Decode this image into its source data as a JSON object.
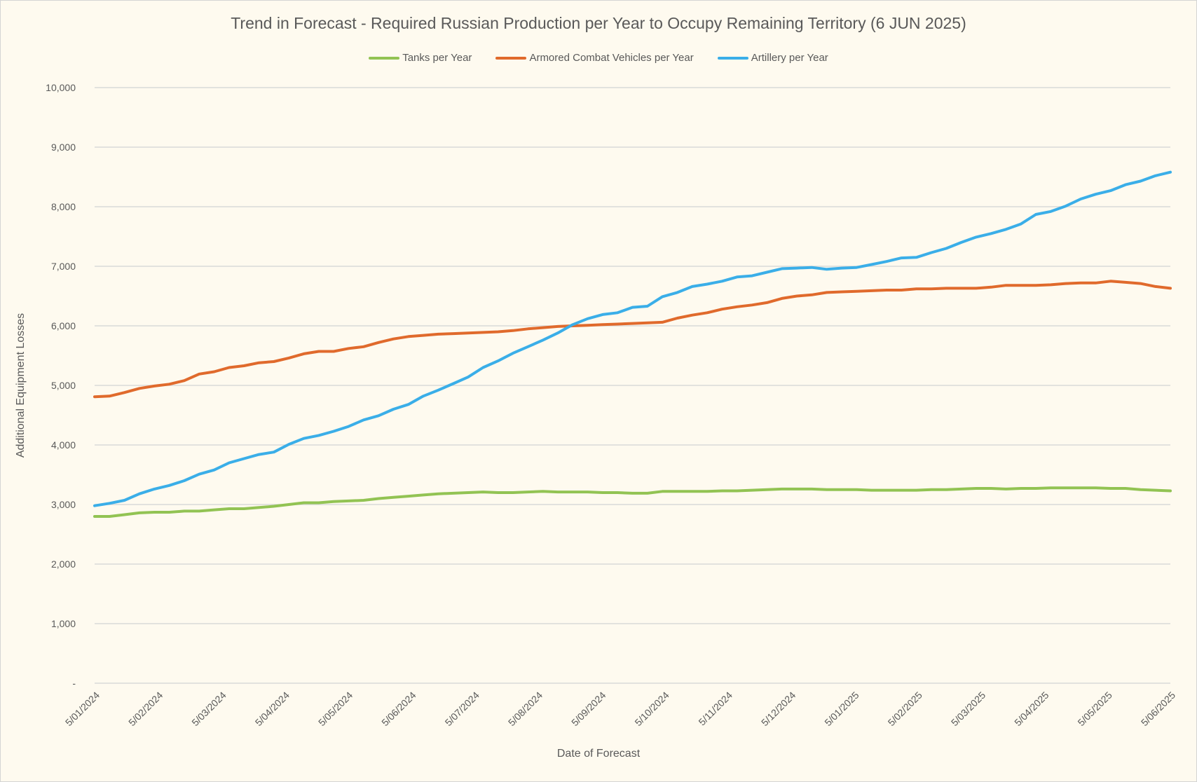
{
  "chart_data": {
    "type": "line",
    "title": "Trend in Forecast - Required Russian Production per Year to Occupy Remaining Territory (6 JUN 2025)",
    "xlabel": "Date of Forecast",
    "ylabel": "Additional Equipment Losses",
    "ylim": [
      0,
      10000
    ],
    "yticks": [
      0,
      1000,
      2000,
      3000,
      4000,
      5000,
      6000,
      7000,
      8000,
      9000,
      10000
    ],
    "ytick_labels": [
      "-",
      "1,000",
      "2,000",
      "3,000",
      "4,000",
      "5,000",
      "6,000",
      "7,000",
      "8,000",
      "9,000",
      "10,000"
    ],
    "xtick_labels": [
      "5/01/2024",
      "5/02/2024",
      "5/03/2024",
      "5/04/2024",
      "5/05/2024",
      "5/06/2024",
      "5/07/2024",
      "5/08/2024",
      "5/09/2024",
      "5/10/2024",
      "5/11/2024",
      "5/12/2024",
      "5/01/2025",
      "5/02/2025",
      "5/03/2025",
      "5/04/2025",
      "5/05/2025",
      "5/06/2025"
    ],
    "grid": true,
    "legend_position": "top",
    "series": [
      {
        "name": "Tanks per Year",
        "color": "#92c353",
        "values": [
          2800,
          2800,
          2830,
          2860,
          2870,
          2870,
          2890,
          2890,
          2910,
          2930,
          2930,
          2950,
          2970,
          3000,
          3030,
          3030,
          3050,
          3060,
          3070,
          3100,
          3120,
          3140,
          3160,
          3180,
          3190,
          3200,
          3210,
          3200,
          3200,
          3210,
          3220,
          3210,
          3210,
          3210,
          3200,
          3200,
          3190,
          3190,
          3220,
          3220,
          3220,
          3220,
          3230,
          3230,
          3240,
          3250,
          3260,
          3260,
          3260,
          3250,
          3250,
          3250,
          3240,
          3240,
          3240,
          3240,
          3250,
          3250,
          3260,
          3270,
          3270,
          3260,
          3270,
          3270,
          3280,
          3280,
          3280,
          3280,
          3270,
          3270,
          3250,
          3240,
          3230
        ]
      },
      {
        "name": "Armored Combat Vehicles per Year",
        "color": "#e06a2c",
        "values": [
          4810,
          4820,
          4880,
          4950,
          4990,
          5020,
          5080,
          5190,
          5230,
          5300,
          5330,
          5380,
          5400,
          5460,
          5530,
          5570,
          5570,
          5620,
          5650,
          5720,
          5780,
          5820,
          5840,
          5860,
          5870,
          5880,
          5890,
          5900,
          5920,
          5950,
          5970,
          5990,
          6000,
          6010,
          6020,
          6030,
          6040,
          6050,
          6060,
          6130,
          6180,
          6220,
          6280,
          6320,
          6350,
          6390,
          6460,
          6500,
          6520,
          6560,
          6570,
          6580,
          6590,
          6600,
          6600,
          6620,
          6620,
          6630,
          6630,
          6630,
          6650,
          6680,
          6680,
          6680,
          6690,
          6710,
          6720,
          6720,
          6750,
          6730,
          6710,
          6660,
          6630
        ]
      },
      {
        "name": "Artillery per Year",
        "color": "#3aaee8",
        "values": [
          2980,
          3020,
          3070,
          3180,
          3260,
          3320,
          3400,
          3510,
          3580,
          3700,
          3770,
          3840,
          3880,
          4010,
          4110,
          4160,
          4230,
          4310,
          4420,
          4490,
          4600,
          4680,
          4820,
          4920,
          5030,
          5140,
          5300,
          5410,
          5540,
          5650,
          5760,
          5880,
          6020,
          6120,
          6190,
          6220,
          6310,
          6330,
          6490,
          6560,
          6660,
          6700,
          6750,
          6820,
          6840,
          6900,
          6960,
          6970,
          6980,
          6950,
          6970,
          6980,
          7030,
          7080,
          7140,
          7150,
          7230,
          7300,
          7400,
          7490,
          7550,
          7620,
          7710,
          7870,
          7920,
          8010,
          8130,
          8210,
          8270,
          8370,
          8430,
          8520,
          8580
        ]
      }
    ]
  }
}
